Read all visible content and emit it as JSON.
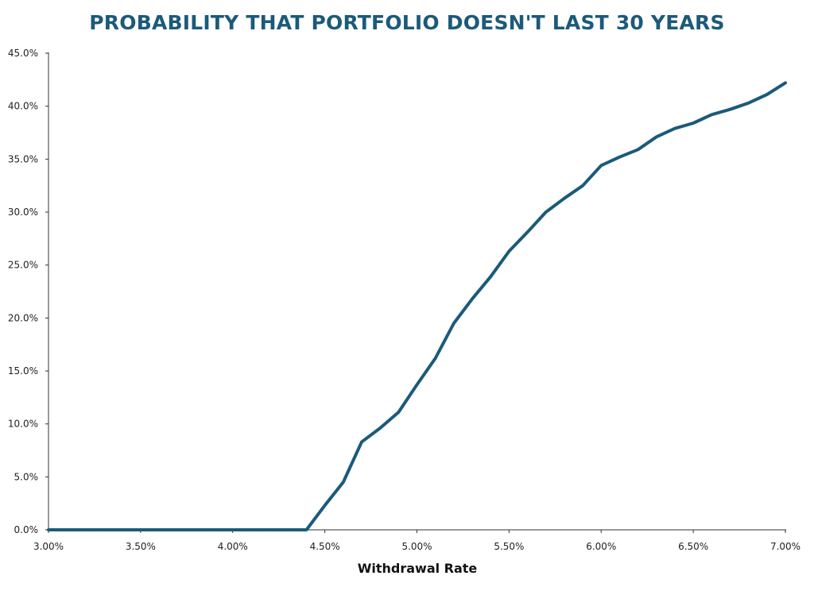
{
  "chart_data": {
    "type": "line",
    "title": "PROBABILITY THAT PORTFOLIO DOESN'T LAST 30 YEARS",
    "xlabel": "Withdrawal Rate",
    "ylabel": "",
    "xlim": [
      3.0,
      7.0
    ],
    "ylim": [
      0,
      45
    ],
    "x_ticks": [
      "3.00%",
      "3.50%",
      "4.00%",
      "4.50%",
      "5.00%",
      "5.50%",
      "6.00%",
      "6.50%",
      "7.00%"
    ],
    "y_ticks": [
      "0.0%",
      "5.0%",
      "10.0%",
      "15.0%",
      "20.0%",
      "25.0%",
      "30.0%",
      "35.0%",
      "40.0%",
      "45.0%"
    ],
    "grid": false,
    "legend": "none",
    "line_color": "#1b5a7a",
    "title_color": "#1b5a7a",
    "series": [
      {
        "x": [
          3.0,
          3.1,
          3.2,
          3.3,
          3.4,
          3.5,
          3.6,
          3.7,
          3.8,
          3.9,
          4.0,
          4.1,
          4.2,
          4.3,
          4.4,
          4.5,
          4.6,
          4.7,
          4.8,
          4.9,
          5.0,
          5.1,
          5.2,
          5.3,
          5.4,
          5.5,
          5.6,
          5.7,
          5.8,
          5.9,
          6.0,
          6.1,
          6.2,
          6.3,
          6.4,
          6.5,
          6.6,
          6.7,
          6.8,
          6.9,
          7.0
        ],
        "values": [
          0,
          0,
          0,
          0,
          0,
          0,
          0,
          0,
          0,
          0,
          0,
          0,
          0,
          0,
          0,
          2.3,
          4.5,
          8.3,
          9.6,
          11.1,
          13.7,
          16.2,
          19.5,
          21.8,
          23.9,
          26.3,
          28.1,
          30.0,
          31.3,
          32.5,
          34.4,
          35.2,
          35.9,
          37.1,
          37.9,
          38.4,
          39.2,
          39.7,
          40.3,
          41.1,
          42.2
        ]
      }
    ]
  }
}
